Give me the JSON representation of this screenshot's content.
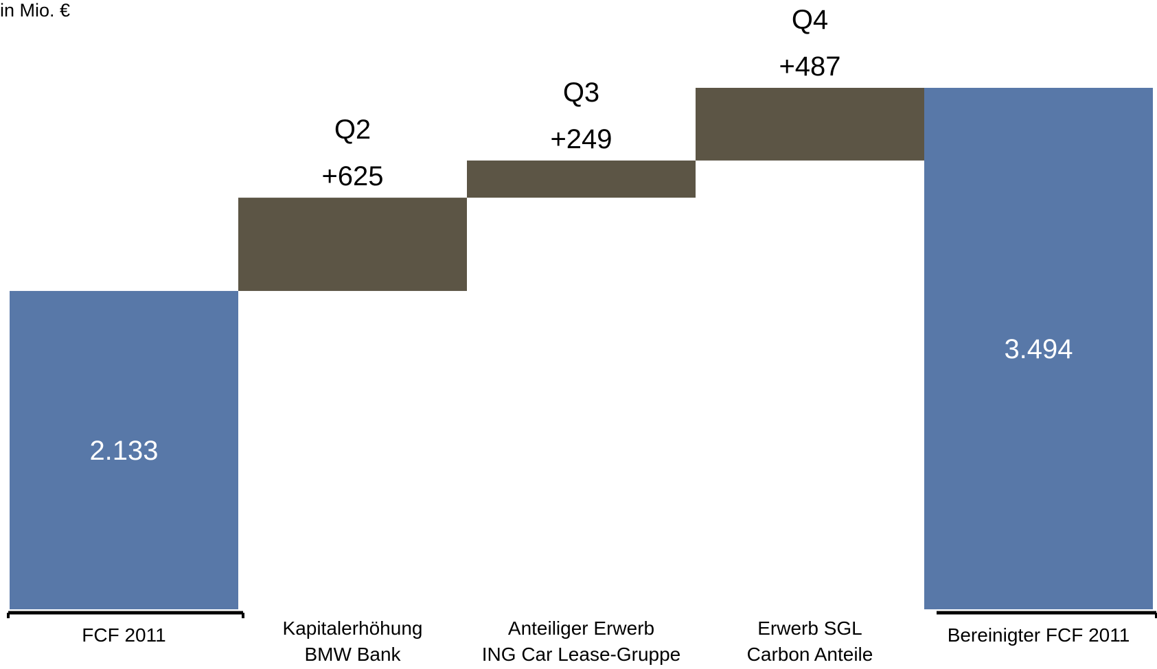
{
  "unit_label": "in Mio. €",
  "colors": {
    "total_bar": "#5878A8",
    "delta_bar": "#5C5545",
    "axis": "#000000"
  },
  "chart_data": {
    "type": "bar",
    "subtype": "waterfall",
    "ylim": [
      0,
      3494
    ],
    "unit": "in Mio. €",
    "categories": [
      [
        "FCF 2011"
      ],
      [
        "Kapitalerhöhung",
        "BMW Bank"
      ],
      [
        "Anteiliger Erwerb",
        "ING  Car Lease-Gruppe"
      ],
      [
        "Erwerb SGL",
        "Carbon Anteile"
      ],
      [
        "Bereinigter FCF 2011"
      ]
    ],
    "bars": [
      {
        "kind": "total",
        "base": 0,
        "value": 2133,
        "label": "2.133"
      },
      {
        "kind": "delta",
        "base": 2133,
        "value": 625,
        "label": "+625",
        "quarter": "Q2"
      },
      {
        "kind": "delta",
        "base": 2758,
        "value": 249,
        "label": "+249",
        "quarter": "Q3"
      },
      {
        "kind": "delta",
        "base": 3007,
        "value": 487,
        "label": "+487",
        "quarter": "Q4"
      },
      {
        "kind": "total",
        "base": 0,
        "value": 3494,
        "label": "3.494"
      }
    ]
  }
}
